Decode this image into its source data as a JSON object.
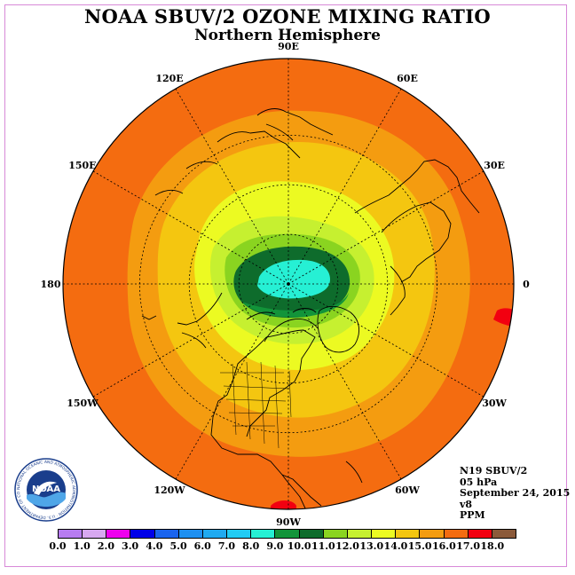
{
  "title": "NOAA SBUV/2 OZONE MIXING RATIO",
  "subtitle": "Northern Hemisphere",
  "longitude_labels": [
    "120E",
    "90E",
    "60E",
    "30E",
    "0",
    "30W",
    "60W",
    "90W",
    "120W",
    "150W",
    "180",
    "150E"
  ],
  "info": {
    "instrument": "N19 SBUV/2",
    "level": "05 hPa",
    "date": "September 24, 2015",
    "version": "v8",
    "units": "PPM"
  },
  "colorbar": {
    "ticks": [
      "0.0",
      "1.0",
      "2.0",
      "3.0",
      "4.0",
      "5.0",
      "6.0",
      "7.0",
      "8.0",
      "9.0",
      "10.0",
      "11.0",
      "12.0",
      "13.0",
      "14.0",
      "15.0",
      "16.0",
      "17.0",
      "18.0"
    ],
    "colors": [
      "#b77cf0",
      "#d7a8f0",
      "#ee00ee",
      "#0000e8",
      "#1a64ee",
      "#1e90f0",
      "#20aaf0",
      "#22ccf4",
      "#26f0d4",
      "#12943a",
      "#0e6c2c",
      "#8ad420",
      "#c6f030",
      "#ecfa22",
      "#f4c610",
      "#f49c10",
      "#f46c10",
      "#f20010",
      "#8b5a3a"
    ]
  },
  "logo": {
    "text": "NOAA",
    "ring_text": "NATIONAL OCEANIC AND ATMOSPHERIC ADMINISTRATION · U.S. DEPARTMENT OF COMMERCE"
  },
  "map_colors": {
    "outer": "#f46c10",
    "band_15": "#f49c10",
    "band_14": "#f4c610",
    "band_13": "#ecfa22",
    "band_12": "#c6f030",
    "band_11": "#8ad420",
    "band_10": "#0e6c2c",
    "band_9": "#12943a",
    "core": "#26f0d4",
    "max": "#f20010"
  }
}
